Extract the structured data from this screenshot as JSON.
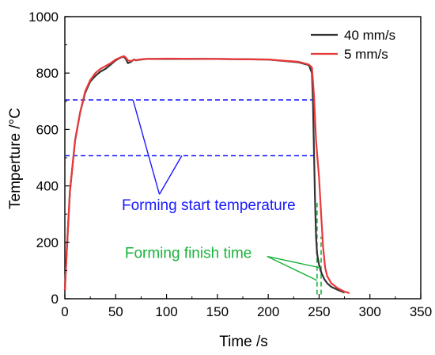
{
  "chart_data": {
    "type": "line",
    "title": "",
    "xlabel": "Time /s",
    "ylabel": "Temperture /°C",
    "xlim": [
      0,
      350
    ],
    "ylim": [
      0,
      1000
    ],
    "xticks": [
      0,
      50,
      100,
      150,
      200,
      250,
      300,
      350
    ],
    "yticks": [
      0,
      200,
      400,
      600,
      800,
      1000
    ],
    "xtick_labels": [
      "0",
      "50",
      "100",
      "150",
      "200",
      "250",
      "300",
      "350"
    ],
    "ytick_labels": [
      "0",
      "200",
      "400",
      "600",
      "800",
      "1000"
    ],
    "grid": false,
    "legend_position": "top-right",
    "series": [
      {
        "name": "40 mm/s",
        "color": "#333333",
        "x": [
          0,
          2,
          5,
          10,
          15,
          20,
          25,
          30,
          35,
          40,
          45,
          50,
          55,
          58,
          60,
          62,
          65,
          68,
          70,
          75,
          80,
          100,
          150,
          200,
          230,
          240,
          243,
          244,
          245,
          246,
          247,
          248,
          250,
          252,
          255,
          258,
          262,
          268,
          275
        ],
        "y": [
          30,
          180,
          380,
          560,
          660,
          730,
          770,
          790,
          805,
          815,
          830,
          845,
          855,
          858,
          850,
          835,
          840,
          848,
          845,
          848,
          850,
          850,
          850,
          848,
          838,
          828,
          800,
          700,
          520,
          350,
          220,
          160,
          120,
          95,
          70,
          55,
          42,
          32,
          22
        ]
      },
      {
        "name": "5 mm/s",
        "color": "#e8393b",
        "x": [
          0,
          2,
          5,
          10,
          15,
          20,
          25,
          30,
          35,
          40,
          45,
          50,
          55,
          58,
          60,
          62,
          65,
          68,
          70,
          75,
          80,
          100,
          150,
          200,
          230,
          240,
          243,
          245,
          247,
          250,
          252,
          254,
          256,
          258,
          262,
          268,
          275,
          280
        ],
        "y": [
          30,
          180,
          380,
          560,
          660,
          735,
          775,
          800,
          815,
          825,
          835,
          848,
          856,
          860,
          855,
          845,
          842,
          848,
          846,
          849,
          850,
          851,
          850,
          848,
          840,
          830,
          820,
          720,
          560,
          430,
          300,
          180,
          110,
          80,
          55,
          38,
          25,
          20
        ]
      }
    ],
    "reference_lines": [
      {
        "orientation": "horizontal",
        "y": 705,
        "x_from": 0,
        "x_to": 247,
        "color": "#1a1aff",
        "style": "dashed"
      },
      {
        "orientation": "horizontal",
        "y": 507,
        "x_from": 0,
        "x_to": 247,
        "color": "#1a1aff",
        "style": "dashed"
      },
      {
        "orientation": "vertical",
        "x": 248,
        "y_from": 15,
        "y_to": 340,
        "color": "#19b33a",
        "style": "dashed"
      },
      {
        "orientation": "vertical",
        "x": 252,
        "y_from": 15,
        "y_to": 220,
        "color": "#19b33a",
        "style": "dashed"
      }
    ],
    "annotations": [
      {
        "text": "Forming start temperature",
        "color": "#1a1aff",
        "anchor_x": 56,
        "anchor_y": 315,
        "pointers": [
          [
            67,
            705
          ],
          [
            115,
            507
          ]
        ],
        "pointer_origin": [
          93,
          370
        ]
      },
      {
        "text": "Forming finish time",
        "color": "#19b33a",
        "anchor_x": 59,
        "anchor_y": 145,
        "pointers": [
          [
            248,
            65
          ],
          [
            251,
            110
          ]
        ],
        "pointer_origin": [
          199,
          150
        ]
      }
    ]
  }
}
